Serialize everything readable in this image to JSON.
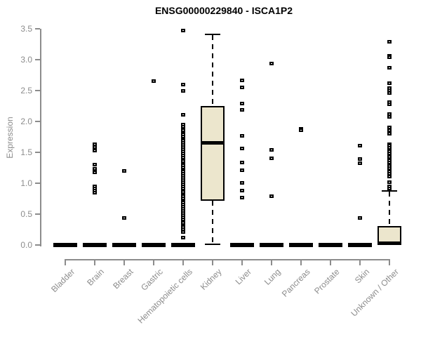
{
  "chart_data": {
    "type": "boxplot",
    "title": "ENSG00000229840 - ISCA1P2",
    "xlabel": "",
    "ylabel": "Expression",
    "ylim": [
      0,
      3.5
    ],
    "yticks": [
      0,
      0.5,
      1.0,
      1.5,
      2.0,
      2.5,
      3.0,
      3.5
    ],
    "grid": false,
    "legend": "none",
    "categories": [
      "Bladder",
      "Brain",
      "Breast",
      "Gastric",
      "Hematopoietic cells",
      "Kidney",
      "Liver",
      "Lung",
      "Pancreas",
      "Prostate",
      "Skin",
      "Unknown / Other"
    ],
    "boxes": [
      {
        "category": "Bladder",
        "q1": 0,
        "median": 0,
        "q3": 0,
        "whisker_low": 0,
        "whisker_high": 0,
        "outliers": []
      },
      {
        "category": "Brain",
        "q1": 0,
        "median": 0,
        "q3": 0,
        "whisker_low": 0,
        "whisker_high": 0,
        "outliers": [
          1.64,
          1.59,
          1.56,
          1.53,
          1.31,
          1.24,
          1.21,
          1.18,
          0.95,
          0.92,
          0.89,
          0.85
        ]
      },
      {
        "category": "Breast",
        "q1": 0,
        "median": 0,
        "q3": 0,
        "whisker_low": 0,
        "whisker_high": 0,
        "outliers": [
          1.21,
          0.44
        ]
      },
      {
        "category": "Gastric",
        "q1": 0,
        "median": 0,
        "q3": 0,
        "whisker_low": 0,
        "whisker_high": 0,
        "outliers": [
          2.66
        ]
      },
      {
        "category": "Hematopoietic cells",
        "q1": 0,
        "median": 0,
        "q3": 0,
        "whisker_low": 0,
        "whisker_high": 0,
        "outliers": [
          3.48,
          2.6,
          2.5,
          2.11,
          1.95,
          1.92,
          1.89,
          1.86,
          1.82,
          1.79,
          1.76,
          1.72,
          1.69,
          1.66,
          1.62,
          1.59,
          1.56,
          1.52,
          1.49,
          1.46,
          1.42,
          1.39,
          1.36,
          1.32,
          1.29,
          1.26,
          1.22,
          1.19,
          1.16,
          1.12,
          1.09,
          1.06,
          1.02,
          0.99,
          0.96,
          0.92,
          0.89,
          0.86,
          0.82,
          0.79,
          0.76,
          0.72,
          0.69,
          0.66,
          0.62,
          0.59,
          0.56,
          0.52,
          0.49,
          0.46,
          0.42,
          0.39,
          0.36,
          0.32,
          0.29,
          0.26,
          0.22,
          0.12
        ]
      },
      {
        "category": "Kidney",
        "q1": 0.72,
        "median": 1.65,
        "q3": 2.25,
        "whisker_low": 0.01,
        "whisker_high": 3.41,
        "outliers": []
      },
      {
        "category": "Liver",
        "q1": 0,
        "median": 0,
        "q3": 0,
        "whisker_low": 0,
        "whisker_high": 0,
        "outliers": [
          2.67,
          2.56,
          2.3,
          2.19,
          1.77,
          1.57,
          1.34,
          1.22,
          1.01,
          0.89,
          0.77
        ]
      },
      {
        "category": "Lung",
        "q1": 0,
        "median": 0,
        "q3": 0,
        "whisker_low": 0,
        "whisker_high": 0,
        "outliers": [
          2.94,
          1.55,
          1.41,
          0.79
        ]
      },
      {
        "category": "Pancreas",
        "q1": 0,
        "median": 0,
        "q3": 0,
        "whisker_low": 0,
        "whisker_high": 0,
        "outliers": [
          1.89,
          1.86
        ]
      },
      {
        "category": "Prostate",
        "q1": 0,
        "median": 0,
        "q3": 0,
        "whisker_low": 0,
        "whisker_high": 0,
        "outliers": []
      },
      {
        "category": "Skin",
        "q1": 0,
        "median": 0,
        "q3": 0,
        "whisker_low": 0,
        "whisker_high": 0,
        "outliers": [
          1.61,
          1.4,
          1.33,
          0.44
        ]
      },
      {
        "category": "Unknown / Other",
        "q1": 0.01,
        "median": 0.03,
        "q3": 0.31,
        "whisker_low": 0,
        "whisker_high": 0.88,
        "outliers": [
          3.3,
          3.07,
          3.04,
          2.88,
          2.63,
          2.55,
          2.51,
          2.47,
          2.32,
          2.28,
          2.12,
          2.08,
          1.91,
          1.86,
          1.81,
          1.64,
          1.61,
          1.58,
          1.55,
          1.52,
          1.49,
          1.46,
          1.43,
          1.4,
          1.37,
          1.34,
          1.31,
          1.28,
          1.25,
          1.22,
          1.19,
          1.16,
          1.11,
          1.02,
          0.96,
          0.92
        ]
      }
    ],
    "colors": {
      "box_fill": "#ECE6CD",
      "box_border": "#000000",
      "median": "#000000",
      "outlier": "#000000",
      "axis": "#8c8c8c",
      "tick_label": "#8c8c8c",
      "title": "#000000",
      "background": "#ffffff"
    }
  }
}
